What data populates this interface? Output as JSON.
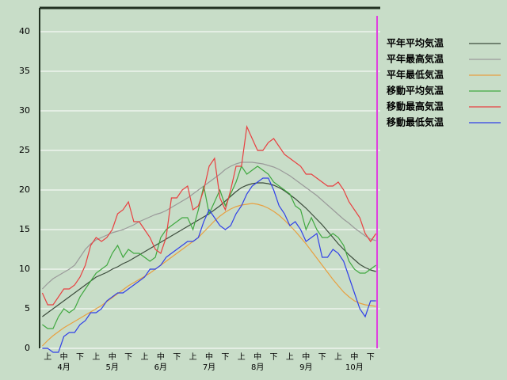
{
  "chart_data": {
    "type": "line",
    "ylim": [
      0,
      43
    ],
    "yticks": [
      0,
      5,
      10,
      15,
      20,
      25,
      30,
      35,
      40
    ],
    "grid": true,
    "legend": "top-right",
    "categories": [
      null,
      "上",
      null,
      null,
      "中",
      null,
      null,
      "下",
      null,
      null,
      "上",
      null,
      null,
      "中",
      null,
      null,
      "下",
      null,
      null,
      "上",
      null,
      null,
      "中",
      null,
      null,
      "下",
      null,
      null,
      "上",
      null,
      null,
      "中",
      null,
      null,
      "下",
      null,
      null,
      "上",
      null,
      null,
      "中",
      null,
      null,
      "下",
      null,
      null,
      "上",
      null,
      null,
      "中",
      null,
      null,
      "下",
      null,
      null,
      "上",
      null,
      null,
      "中",
      null,
      null,
      "下",
      null
    ],
    "months": [
      "4月",
      "5月",
      "6月",
      "7月",
      "8月",
      "9月",
      "10月"
    ],
    "series": [
      {
        "name": "平年平均気温",
        "color": "#3c4c3c",
        "values": [
          4,
          4.5,
          5,
          5.5,
          6,
          6.5,
          7,
          7.5,
          8,
          8.5,
          9,
          9.3,
          9.6,
          10,
          10.3,
          10.7,
          11,
          11.4,
          11.8,
          12.2,
          12.6,
          13,
          13.4,
          13.8,
          14.2,
          14.6,
          15,
          15.4,
          15.8,
          16.2,
          16.6,
          17,
          17.5,
          18,
          18.6,
          19.2,
          19.8,
          20.3,
          20.6,
          20.8,
          20.9,
          20.9,
          20.8,
          20.6,
          20.3,
          19.9,
          19.4,
          18.9,
          18.3,
          17.7,
          17,
          16.3,
          15.6,
          14.8,
          14,
          13.2,
          12.5,
          11.8,
          11.2,
          10.6,
          10.2,
          9.9,
          9.7
        ]
      },
      {
        "name": "平年最高気温",
        "color": "#9a9a9a",
        "values": [
          7.5,
          8.2,
          8.8,
          9.2,
          9.6,
          10,
          10.5,
          11.5,
          12.5,
          13.2,
          13.7,
          14,
          14.3,
          14.6,
          14.8,
          15,
          15.3,
          15.6,
          16,
          16.3,
          16.6,
          16.9,
          17.1,
          17.4,
          17.8,
          18.2,
          18.6,
          19,
          19.5,
          20,
          20.5,
          21,
          21.5,
          22,
          22.6,
          23,
          23.3,
          23.5,
          23.5,
          23.5,
          23.4,
          23.3,
          23.1,
          22.9,
          22.6,
          22.2,
          21.8,
          21.3,
          20.8,
          20.3,
          19.8,
          19.3,
          18.7,
          18.1,
          17.5,
          16.9,
          16.3,
          15.8,
          15.2,
          14.7,
          14.2,
          13.8,
          13.6
        ]
      },
      {
        "name": "平年最低気温",
        "color": "#e8a040",
        "values": [
          0.3,
          1,
          1.6,
          2.1,
          2.6,
          3,
          3.4,
          3.8,
          4.2,
          4.6,
          5,
          5.4,
          5.9,
          6.4,
          6.9,
          7.4,
          7.9,
          8.3,
          8.7,
          9.1,
          9.5,
          10,
          10.5,
          11,
          11.5,
          12,
          12.5,
          13,
          13.5,
          14,
          14.7,
          15.4,
          16.1,
          16.7,
          17.2,
          17.6,
          17.9,
          18.1,
          18.2,
          18.3,
          18.2,
          18,
          17.7,
          17.3,
          16.8,
          16.2,
          15.5,
          14.8,
          14,
          13.2,
          12.3,
          11.4,
          10.5,
          9.6,
          8.7,
          7.9,
          7.1,
          6.5,
          6,
          5.7,
          5.5,
          5.4,
          5.3
        ]
      },
      {
        "name": "移動平均気温",
        "color": "#40a840",
        "values": [
          3,
          2.5,
          2.5,
          4,
          5,
          4.5,
          5,
          6.5,
          7.5,
          8.5,
          9.5,
          10,
          10.5,
          12,
          13,
          11.5,
          12.5,
          12,
          12,
          11.5,
          11,
          11.5,
          14,
          15,
          15.5,
          16,
          16.5,
          16.5,
          15,
          17.5,
          20.5,
          17,
          18.5,
          20,
          18,
          19.5,
          21,
          23,
          22,
          22.5,
          23,
          22.5,
          22,
          21,
          20.5,
          20,
          19.5,
          18,
          17.5,
          15,
          16.5,
          15,
          14,
          14,
          14.5,
          14,
          13,
          11,
          10,
          9.5,
          9.5,
          10,
          10.5
        ]
      },
      {
        "name": "移動最高気温",
        "color": "#e84040",
        "values": [
          7,
          5.5,
          5.5,
          6.5,
          7.5,
          7.5,
          8,
          9,
          10.5,
          13,
          14,
          13.5,
          14,
          15,
          17,
          17.5,
          18.5,
          16,
          16,
          15,
          14,
          12.5,
          12,
          14,
          19,
          19,
          20,
          20.5,
          17.5,
          18,
          20,
          23,
          24,
          19,
          17.5,
          20,
          23,
          23,
          28,
          26.5,
          25,
          25,
          26,
          26.5,
          25.5,
          24.5,
          24,
          23.5,
          23,
          22,
          22,
          21.5,
          21,
          20.5,
          20.5,
          21,
          20,
          18.5,
          17.5,
          16.5,
          14.5,
          13.5,
          14.5
        ]
      },
      {
        "name": "移動最低気温",
        "color": "#3040e8",
        "values": [
          0,
          0,
          -0.5,
          -0.5,
          1.5,
          2,
          2,
          3,
          3.5,
          4.5,
          4.5,
          5,
          6,
          6.5,
          7,
          7,
          7.5,
          8,
          8.5,
          9,
          10,
          10,
          10.5,
          11.5,
          12,
          12.5,
          13,
          13.5,
          13.5,
          14,
          16,
          17.5,
          16.5,
          15.5,
          15,
          15.5,
          17,
          18,
          19.5,
          20.5,
          21,
          21.5,
          21.5,
          20,
          18,
          17,
          15.5,
          16,
          15,
          13.5,
          14,
          14.5,
          11.5,
          11.5,
          12.5,
          12,
          11,
          9,
          7,
          5,
          4,
          6,
          6
        ]
      }
    ]
  }
}
